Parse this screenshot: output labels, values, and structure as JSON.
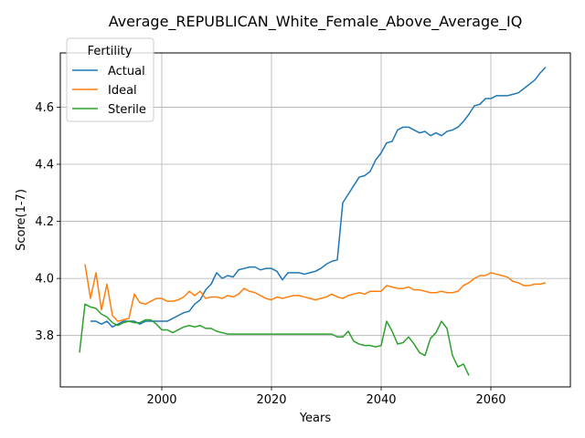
{
  "chart_data": {
    "type": "line",
    "title": "Average_REPUBLICAN_White_Female_Above_Average_IQ",
    "xlabel": "Years",
    "ylabel": "Score(1-7)",
    "xlim": [
      1981.5,
      2074.5
    ],
    "ylim": [
      3.62,
      4.79
    ],
    "x_ticks": [
      2000,
      2020,
      2040,
      2060
    ],
    "y_ticks": [
      3.8,
      4.0,
      4.2,
      4.4,
      4.6
    ],
    "y_tick_labels": [
      "3.8",
      "4.0",
      "4.2",
      "4.4",
      "4.6"
    ],
    "grid": true,
    "legend": {
      "title": "Fertility",
      "location": "upper-left"
    },
    "series": [
      {
        "name": "Actual",
        "color": "#1f77b4",
        "x": [
          1987,
          1988,
          1989,
          1990,
          1991,
          1992,
          1993,
          1994,
          1995,
          1996,
          1997,
          1998,
          1999,
          2000,
          2001,
          2002,
          2003,
          2004,
          2005,
          2006,
          2007,
          2008,
          2009,
          2010,
          2011,
          2012,
          2013,
          2014,
          2015,
          2016,
          2017,
          2018,
          2019,
          2020,
          2021,
          2022,
          2023,
          2024,
          2025,
          2026,
          2027,
          2028,
          2029,
          2030,
          2031,
          2032,
          2033,
          2034,
          2035,
          2036,
          2037,
          2038,
          2039,
          2040,
          2041,
          2042,
          2043,
          2044,
          2045,
          2046,
          2047,
          2048,
          2049,
          2050,
          2051,
          2052,
          2053,
          2054,
          2055,
          2056,
          2057,
          2058,
          2059,
          2060,
          2061,
          2062,
          2063,
          2064,
          2065,
          2066,
          2067,
          2068,
          2069,
          2070
        ],
        "values": [
          3.85,
          3.85,
          3.84,
          3.85,
          3.83,
          3.84,
          3.85,
          3.85,
          3.85,
          3.84,
          3.85,
          3.85,
          3.85,
          3.85,
          3.85,
          3.86,
          3.87,
          3.88,
          3.885,
          3.91,
          3.925,
          3.96,
          3.98,
          4.02,
          4.0,
          4.01,
          4.005,
          4.03,
          4.035,
          4.04,
          4.04,
          4.03,
          4.035,
          4.035,
          4.025,
          3.995,
          4.02,
          4.02,
          4.02,
          4.015,
          4.02,
          4.025,
          4.035,
          4.05,
          4.06,
          4.065,
          4.265,
          4.295,
          4.325,
          4.355,
          4.36,
          4.375,
          4.415,
          4.44,
          4.475,
          4.48,
          4.52,
          4.53,
          4.53,
          4.52,
          4.51,
          4.515,
          4.5,
          4.51,
          4.5,
          4.515,
          4.52,
          4.53,
          4.55,
          4.575,
          4.605,
          4.61,
          4.63,
          4.63,
          4.64,
          4.64,
          4.64,
          4.645,
          4.65,
          4.665,
          4.68,
          4.695,
          4.72,
          4.74
        ]
      },
      {
        "name": "Ideal",
        "color": "#ff7f0e",
        "x": [
          1986,
          1987,
          1988,
          1989,
          1990,
          1991,
          1992,
          1993,
          1994,
          1995,
          1996,
          1997,
          1998,
          1999,
          2000,
          2001,
          2002,
          2003,
          2004,
          2005,
          2006,
          2007,
          2008,
          2009,
          2010,
          2011,
          2012,
          2013,
          2014,
          2015,
          2016,
          2017,
          2018,
          2019,
          2020,
          2021,
          2022,
          2023,
          2024,
          2025,
          2026,
          2027,
          2028,
          2029,
          2030,
          2031,
          2032,
          2033,
          2034,
          2035,
          2036,
          2037,
          2038,
          2039,
          2040,
          2041,
          2042,
          2043,
          2044,
          2045,
          2046,
          2047,
          2048,
          2049,
          2050,
          2051,
          2052,
          2053,
          2054,
          2055,
          2056,
          2057,
          2058,
          2059,
          2060,
          2061,
          2062,
          2063,
          2064,
          2065,
          2066,
          2067,
          2068,
          2069,
          2070
        ],
        "values": [
          4.05,
          3.93,
          4.02,
          3.89,
          3.98,
          3.87,
          3.85,
          3.855,
          3.86,
          3.945,
          3.915,
          3.91,
          3.92,
          3.93,
          3.93,
          3.92,
          3.92,
          3.925,
          3.935,
          3.955,
          3.94,
          3.955,
          3.93,
          3.935,
          3.935,
          3.93,
          3.94,
          3.935,
          3.945,
          3.965,
          3.955,
          3.95,
          3.94,
          3.93,
          3.925,
          3.935,
          3.93,
          3.935,
          3.94,
          3.94,
          3.935,
          3.93,
          3.925,
          3.93,
          3.935,
          3.945,
          3.935,
          3.93,
          3.94,
          3.945,
          3.95,
          3.945,
          3.955,
          3.955,
          3.955,
          3.975,
          3.97,
          3.965,
          3.965,
          3.97,
          3.96,
          3.96,
          3.955,
          3.95,
          3.95,
          3.955,
          3.95,
          3.95,
          3.955,
          3.975,
          3.985,
          4.0,
          4.01,
          4.01,
          4.02,
          4.015,
          4.01,
          4.005,
          3.99,
          3.985,
          3.975,
          3.975,
          3.98,
          3.98,
          3.985
        ]
      },
      {
        "name": "Sterile",
        "color": "#2ca02c",
        "x": [
          1985,
          1986,
          1987,
          1988,
          1989,
          1990,
          1991,
          1992,
          1993,
          1994,
          1995,
          1996,
          1997,
          1998,
          1999,
          2000,
          2001,
          2002,
          2003,
          2004,
          2005,
          2006,
          2007,
          2008,
          2009,
          2010,
          2011,
          2012,
          2013,
          2014,
          2015,
          2016,
          2017,
          2018,
          2019,
          2020,
          2021,
          2022,
          2023,
          2024,
          2025,
          2026,
          2027,
          2028,
          2029,
          2030,
          2031,
          2032,
          2033,
          2034,
          2035,
          2036,
          2037,
          2038,
          2039,
          2040,
          2041,
          2042,
          2043,
          2044,
          2045,
          2046,
          2047,
          2048,
          2049,
          2050,
          2051,
          2052,
          2053,
          2054,
          2055,
          2056
        ],
        "values": [
          3.74,
          3.91,
          3.9,
          3.895,
          3.875,
          3.865,
          3.845,
          3.835,
          3.845,
          3.85,
          3.845,
          3.845,
          3.855,
          3.855,
          3.84,
          3.82,
          3.82,
          3.81,
          3.82,
          3.83,
          3.835,
          3.83,
          3.835,
          3.825,
          3.825,
          3.815,
          3.81,
          3.805,
          3.805,
          3.805,
          3.805,
          3.805,
          3.805,
          3.805,
          3.805,
          3.805,
          3.805,
          3.805,
          3.805,
          3.805,
          3.805,
          3.805,
          3.805,
          3.805,
          3.805,
          3.805,
          3.805,
          3.795,
          3.795,
          3.815,
          3.78,
          3.77,
          3.765,
          3.765,
          3.76,
          3.765,
          3.85,
          3.815,
          3.77,
          3.775,
          3.795,
          3.77,
          3.74,
          3.73,
          3.79,
          3.81,
          3.85,
          3.825,
          3.73,
          3.69,
          3.7,
          3.66
        ]
      }
    ]
  }
}
